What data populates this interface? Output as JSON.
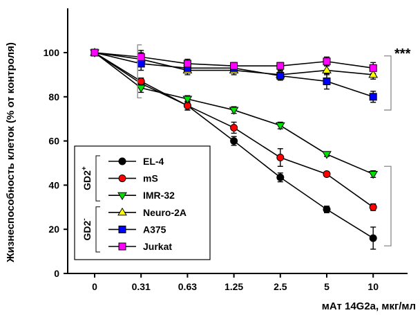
{
  "chart_data": {
    "type": "line",
    "xlabel": "мАт 14G2a, мкг/мл",
    "ylabel": "Жизнеспособность клеток (% от контроля)",
    "x": [
      "0",
      "0.31",
      "0.63",
      "1.25",
      "2.5",
      "5",
      "10"
    ],
    "ylim": [
      0,
      120
    ],
    "yticks": [
      0,
      20,
      40,
      60,
      80,
      100
    ],
    "grid": false,
    "legend_position": "bottom-left",
    "series": [
      {
        "name": "EL-4",
        "marker": "circle",
        "marker_color": "#000000",
        "values": [
          100,
          86,
          76,
          60,
          43.5,
          29,
          16
        ],
        "errors": [
          0,
          1.5,
          2,
          2,
          2,
          1.5,
          5
        ]
      },
      {
        "name": "mS",
        "marker": "circle",
        "marker_color": "#ff0000",
        "values": [
          100,
          87,
          76,
          66,
          52.5,
          45,
          30
        ],
        "errors": [
          0,
          1.5,
          2,
          2.5,
          4,
          1,
          1.5
        ]
      },
      {
        "name": "IMR-32",
        "marker": "triangle-down",
        "marker_color": "#00e000",
        "values": [
          100,
          84,
          79,
          74,
          67,
          54,
          45
        ],
        "errors": [
          0,
          2,
          1.5,
          1.5,
          1.5,
          1,
          1.5
        ]
      },
      {
        "name": "Neuro-2A",
        "marker": "triangle-up",
        "marker_color": "#ffff00",
        "values": [
          100,
          97,
          92,
          92,
          90,
          92,
          90
        ],
        "errors": [
          0,
          3,
          2,
          2,
          2,
          2,
          2
        ]
      },
      {
        "name": "A375",
        "marker": "square",
        "marker_color": "#0000ff",
        "values": [
          100,
          95,
          93,
          93,
          89.5,
          87,
          80
        ],
        "errors": [
          0,
          3,
          2,
          2,
          2,
          3.5,
          2.5
        ]
      },
      {
        "name": "Jurkat",
        "marker": "square",
        "marker_color": "#ff00ff",
        "values": [
          100,
          98,
          95,
          94,
          94,
          96,
          93
        ],
        "errors": [
          0,
          3,
          2,
          1.5,
          1.5,
          2,
          2.5
        ]
      }
    ],
    "groups": [
      {
        "label": "GD2",
        "sup": "+",
        "members": [
          "EL-4",
          "mS",
          "IMR-32"
        ]
      },
      {
        "label": "GD2",
        "sup": "-",
        "members": [
          "Neuro-2A",
          "A375",
          "Jurkat"
        ]
      }
    ],
    "annotation": "***"
  }
}
